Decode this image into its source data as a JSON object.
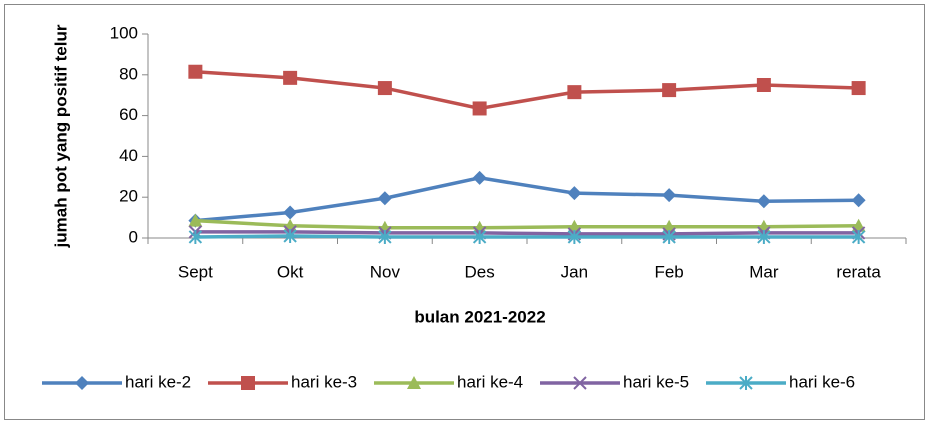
{
  "chart_data": {
    "type": "line",
    "categories": [
      "Sept",
      "Okt",
      "Nov",
      "Des",
      "Jan",
      "Feb",
      "Mar",
      "rerata"
    ],
    "x_label": "bulan 2021-2022",
    "y_label": "jumah pot yang positif telur",
    "ylim": [
      0,
      100
    ],
    "yticks": [
      0,
      20,
      40,
      60,
      80,
      100
    ],
    "grid": false,
    "legend": "bottom",
    "series": [
      {
        "name": "hari ke-2",
        "color": "#4f81bd",
        "marker": "diamond",
        "values": [
          8.5,
          12.5,
          19.5,
          29.5,
          22,
          21,
          18,
          18.5
        ]
      },
      {
        "name": "hari ke-3",
        "color": "#c0504d",
        "marker": "square",
        "values": [
          81.5,
          78.5,
          73.5,
          63.5,
          71.5,
          72.5,
          75,
          73.5
        ]
      },
      {
        "name": "hari ke-4",
        "color": "#9bbb59",
        "marker": "triangle",
        "values": [
          8.5,
          6,
          5,
          5,
          5.5,
          5.5,
          5.5,
          6
        ]
      },
      {
        "name": "hari ke-5",
        "color": "#8064a2",
        "marker": "x",
        "values": [
          3,
          3,
          2.5,
          2.5,
          2,
          2,
          2.5,
          2.5
        ]
      },
      {
        "name": "hari ke-6",
        "color": "#4bacc6",
        "marker": "star",
        "values": [
          0.5,
          1,
          0.5,
          0.5,
          0.5,
          0.5,
          0.5,
          0.5
        ]
      }
    ]
  }
}
